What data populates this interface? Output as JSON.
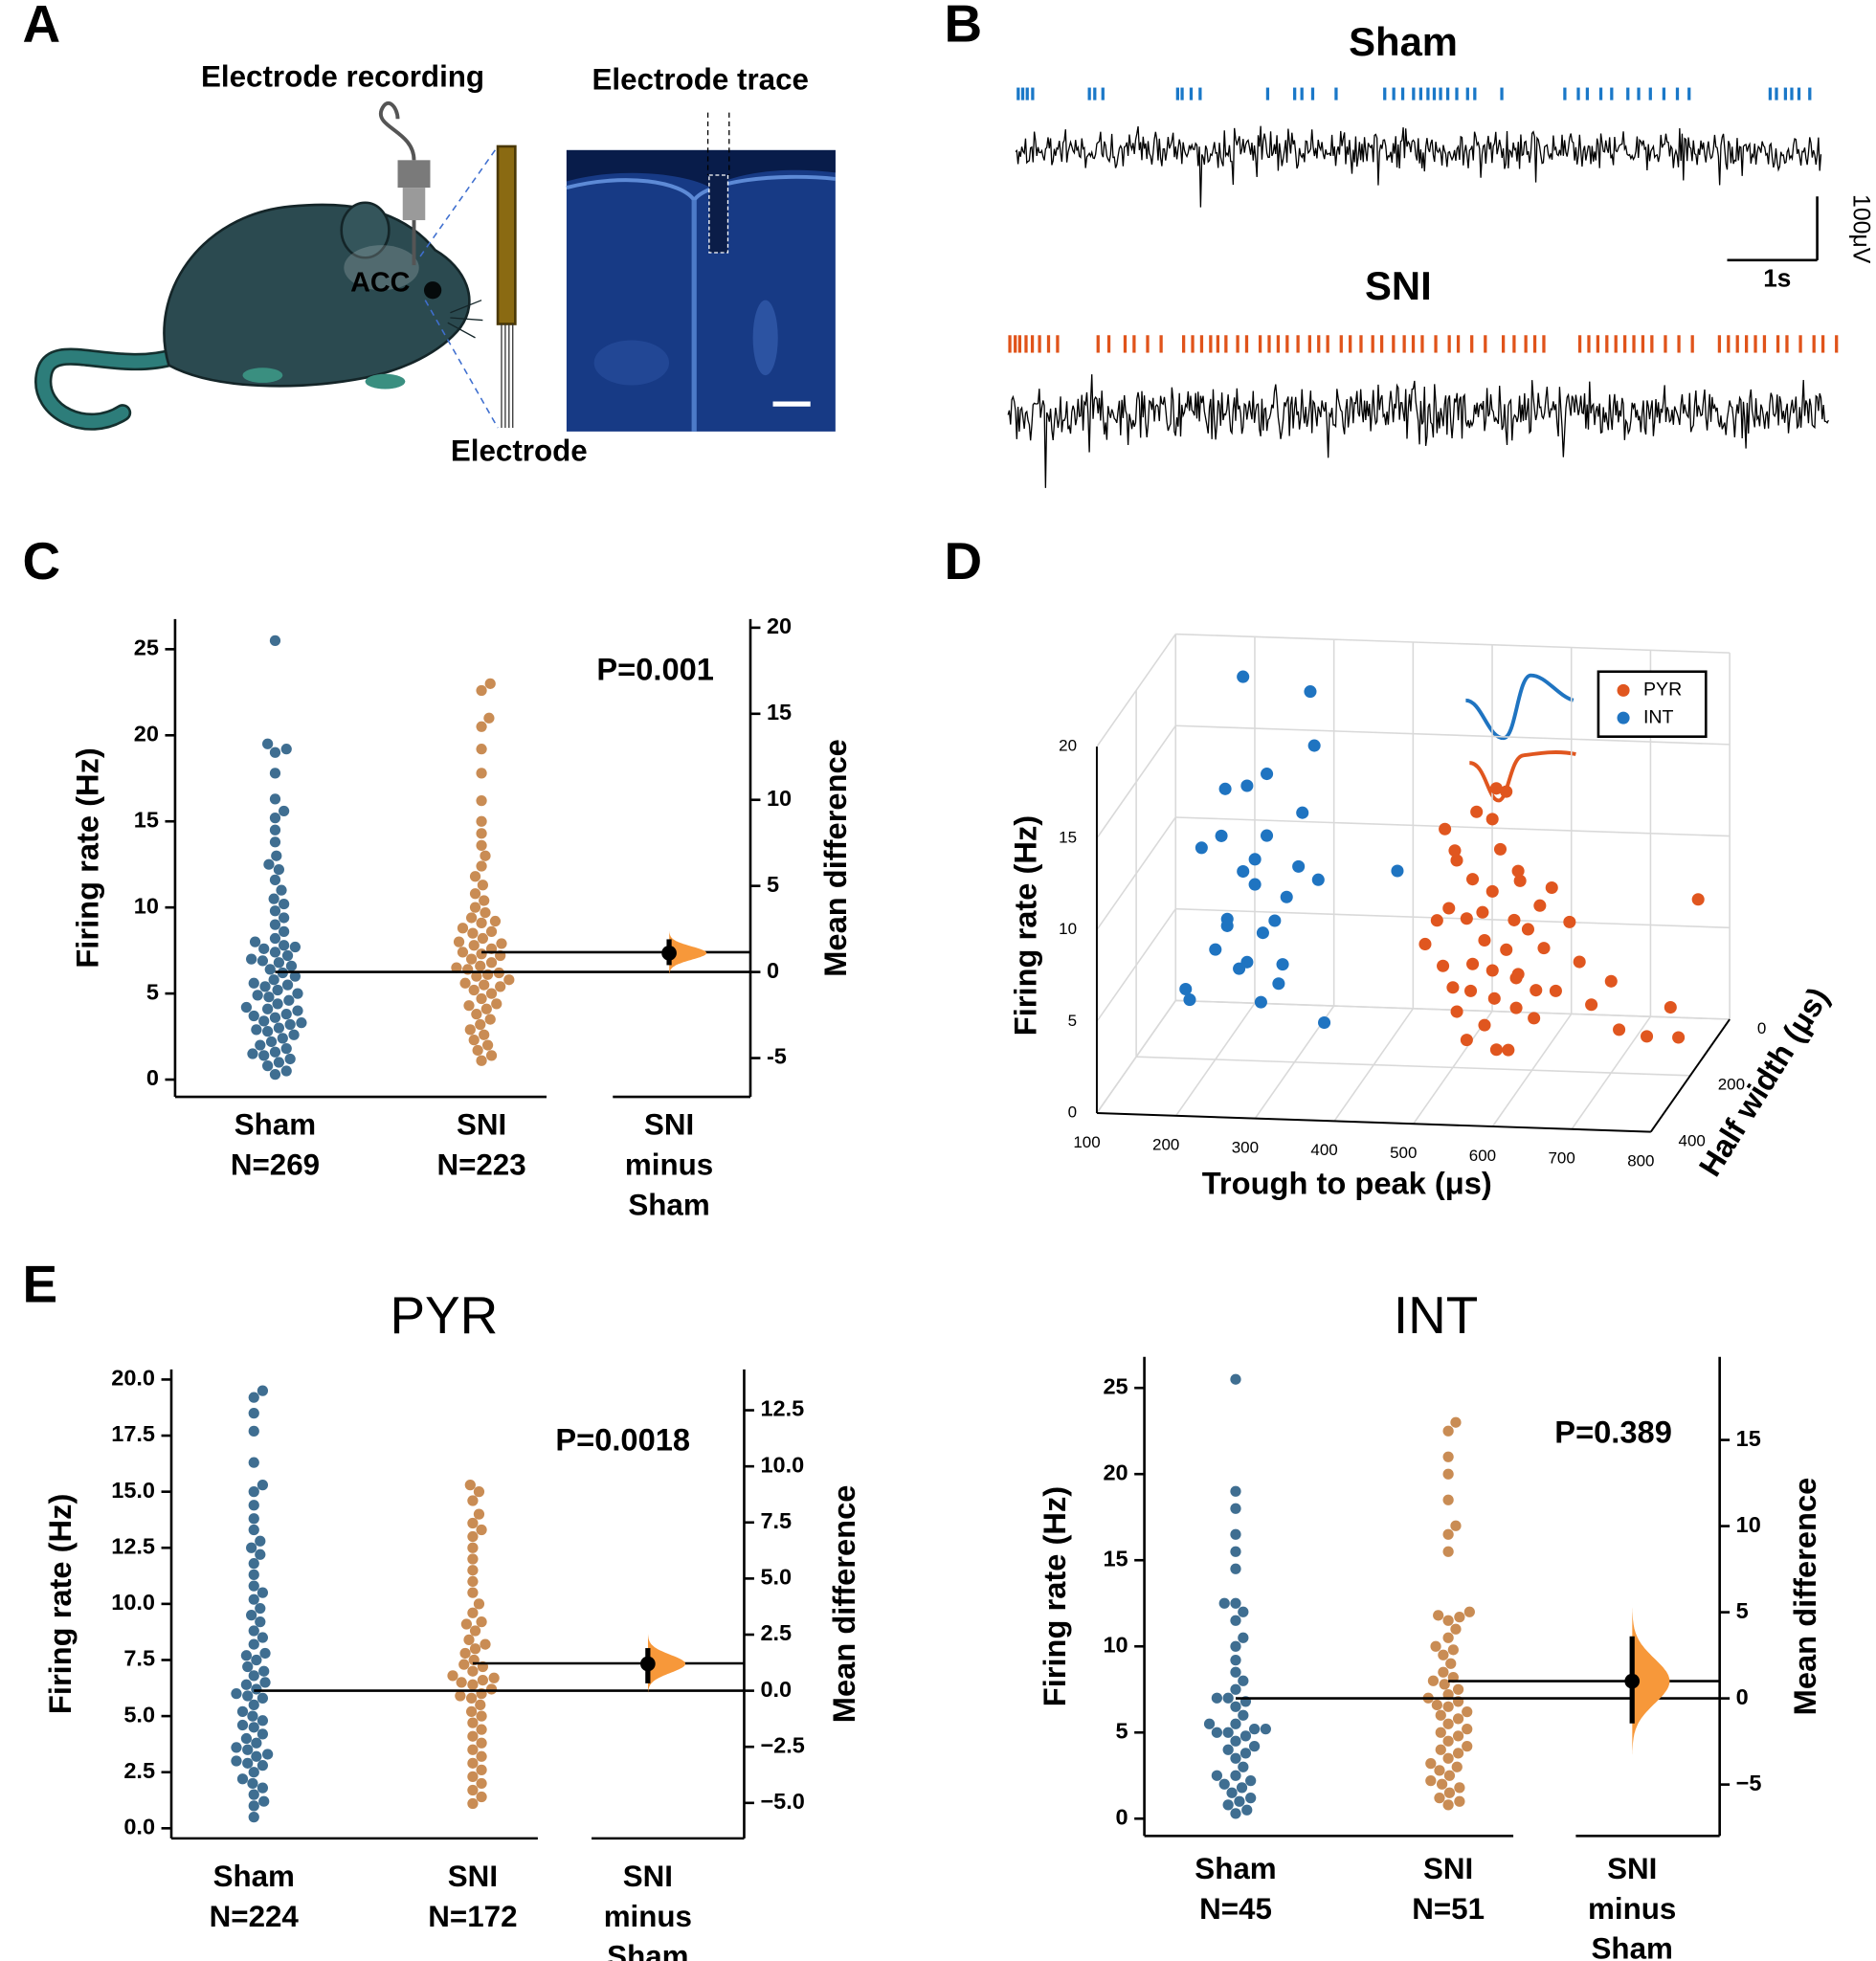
{
  "panel_labels": [
    "A",
    "B",
    "C",
    "D",
    "E"
  ],
  "diagram": {
    "electrode_recording": "Electrode recording",
    "electrode_trace": "Electrode trace",
    "region": "ACC",
    "electrode": "Electrode"
  },
  "chart_data": [
    {
      "type": "raster",
      "series": [
        {
          "name": "Sham",
          "color": "#1a78c8",
          "spike_times": [
            0.03,
            0.08,
            0.13,
            0.19,
            0.82,
            0.88,
            0.97,
            1.8,
            1.85,
            1.95,
            2.05,
            2.8,
            3.1,
            3.18,
            3.3,
            3.56,
            4.1,
            4.2,
            4.3,
            4.42,
            4.5,
            4.58,
            4.65,
            4.72,
            4.8,
            4.9,
            5.02,
            5.1,
            5.4,
            6.1,
            6.25,
            6.35,
            6.5,
            6.62,
            6.8,
            6.92,
            7.05,
            7.2,
            7.35,
            7.48,
            8.38,
            8.45,
            8.55,
            8.62,
            8.7,
            8.82
          ]
        },
        {
          "name": "SNI",
          "color": "#e0531a",
          "spike_times": [
            0.02,
            0.08,
            0.13,
            0.2,
            0.27,
            0.35,
            0.45,
            0.55,
            1.0,
            1.12,
            1.3,
            1.4,
            1.55,
            1.7,
            1.95,
            2.05,
            2.15,
            2.25,
            2.33,
            2.42,
            2.55,
            2.65,
            2.8,
            2.9,
            3.0,
            3.1,
            3.22,
            3.35,
            3.45,
            3.55,
            3.7,
            3.8,
            3.92,
            4.05,
            4.15,
            4.28,
            4.4,
            4.5,
            4.6,
            4.75,
            4.9,
            5.0,
            5.15,
            5.3,
            5.5,
            5.62,
            5.75,
            5.85,
            5.95,
            6.35,
            6.45,
            6.55,
            6.65,
            6.75,
            6.85,
            6.95,
            7.05,
            7.15,
            7.3,
            7.45,
            7.6,
            7.9,
            8.0,
            8.1,
            8.2,
            8.3,
            8.4,
            8.55,
            8.65,
            8.8,
            8.95,
            9.05,
            9.2
          ]
        }
      ],
      "scale_bar": {
        "time": {
          "value": 1,
          "label": "1s"
        },
        "voltage": {
          "value": 100,
          "label": "100μV"
        }
      }
    },
    {
      "type": "estimation",
      "ylabel": "Firing rate (Hz)",
      "y2label": "Mean difference",
      "p_label": "P=0.001",
      "category_labels": [
        [
          "Sham",
          "N=269"
        ],
        [
          "SNI",
          "N=223"
        ],
        [
          "SNI",
          "minus",
          "Sham"
        ]
      ],
      "series": [
        {
          "color": "#3f6e91",
          "mean": 6.25,
          "values": [
            25.5,
            19.5,
            19.2,
            19.0,
            17.8,
            16.3,
            15.6,
            15.2,
            14.5,
            13.8,
            13.0,
            12.5,
            12.2,
            11.6,
            11.0,
            10.5,
            10.2,
            9.8,
            9.4,
            9.0,
            8.6,
            8.2,
            8.0,
            7.8,
            7.6,
            7.4,
            7.2,
            7.0,
            6.8,
            6.6,
            6.4,
            6.2,
            6.0,
            5.8,
            5.6,
            5.4,
            5.2,
            5.0,
            4.8,
            4.6,
            4.4,
            4.2,
            4.0,
            3.8,
            3.6,
            3.4,
            3.2,
            3.0,
            2.8,
            2.6,
            2.4,
            2.2,
            2.0,
            1.8,
            1.6,
            1.4,
            1.2,
            1.0,
            0.8,
            0.5,
            0.3,
            3.3,
            4.1,
            5.5,
            2.9,
            6.9,
            1.5,
            7.7,
            3.7,
            4.9
          ]
        },
        {
          "color": "#c98c54",
          "mean": 7.4,
          "values": [
            23.0,
            22.6,
            21.0,
            20.5,
            19.2,
            17.8,
            16.2,
            15.0,
            14.3,
            13.6,
            13.0,
            12.4,
            11.8,
            11.3,
            10.8,
            10.4,
            10.0,
            9.7,
            9.4,
            9.1,
            8.8,
            8.5,
            8.2,
            8.0,
            7.8,
            7.6,
            7.4,
            7.2,
            7.0,
            6.8,
            6.6,
            6.4,
            6.2,
            6.0,
            5.8,
            5.6,
            5.4,
            5.2,
            5.0,
            4.7,
            4.4,
            4.1,
            3.8,
            3.5,
            3.2,
            2.9,
            2.6,
            2.3,
            2.0,
            1.7,
            1.4,
            1.1,
            6.5,
            7.3,
            6.1,
            8.6,
            5.5,
            9.2,
            4.3,
            7.9
          ]
        }
      ],
      "effect": {
        "value": 1.1,
        "ci": [
          0.4,
          1.9
        ],
        "color": "#f7983a",
        "axis": "y2"
      },
      "ylim": [
        -1,
        26.75
      ],
      "yticks": [
        0,
        5,
        10,
        15,
        20,
        25
      ],
      "y2lim": [
        -7.25,
        20.5
      ],
      "y2ticks": [
        -5,
        0,
        5,
        10,
        15,
        20
      ]
    },
    {
      "type": "scatter3d",
      "xlabel": "Trough to peak (μs)",
      "ylabel": "Half width (μs)",
      "zlabel": "Firing rate (Hz)",
      "xlim": [
        100,
        800
      ],
      "ylim": [
        0,
        400
      ],
      "zlim": [
        0,
        20
      ],
      "xticks": [
        100,
        200,
        300,
        400,
        500,
        600,
        700,
        800
      ],
      "yticks": [
        0,
        200,
        400
      ],
      "zticks": [
        0,
        5,
        10,
        15,
        20
      ],
      "grid": true,
      "legend": "upper right",
      "series": [
        {
          "name": "PYR",
          "color": "#e0561f",
          "x": [
            480,
            500,
            520,
            540,
            560,
            580,
            600,
            520,
            500,
            540,
            560,
            580,
            620,
            640,
            660,
            680,
            700,
            720,
            760,
            780,
            800,
            800,
            510,
            530,
            550,
            570,
            590,
            610,
            490,
            470,
            530,
            550,
            565,
            505,
            545,
            585,
            625,
            645,
            495,
            515,
            535,
            555,
            575,
            595,
            615,
            605,
            585,
            525,
            555,
            575
          ],
          "y": [
            200,
            220,
            180,
            200,
            240,
            200,
            220,
            260,
            180,
            160,
            200,
            180,
            220,
            240,
            200,
            220,
            200,
            240,
            260,
            220,
            160,
            260,
            240,
            220,
            240,
            260,
            240,
            200,
            200,
            220,
            200,
            180,
            190,
            210,
            230,
            210,
            200,
            190,
            230,
            190,
            250,
            220,
            230,
            250,
            240,
            210,
            260,
            230,
            210,
            190
          ],
          "z": [
            8,
            9,
            10,
            7,
            6,
            5,
            8,
            4,
            11,
            13,
            12,
            10,
            7,
            5,
            6,
            4,
            5,
            3,
            3,
            4,
            9,
            3,
            5,
            6,
            3,
            2,
            4,
            9,
            13,
            7,
            14,
            15,
            15,
            12,
            9,
            11,
            10,
            8,
            6,
            8,
            5,
            10,
            7,
            6,
            5,
            3,
            2,
            2,
            4,
            8
          ]
        },
        {
          "name": "INT",
          "color": "#1f74c1",
          "x": [
            150,
            180,
            200,
            210,
            220,
            230,
            240,
            250,
            260,
            220,
            200,
            240,
            270,
            230,
            250,
            260,
            280,
            290,
            300,
            310,
            270,
            220,
            300,
            320,
            190,
            350,
            280,
            330,
            420,
            260
          ],
          "y": [
            150,
            250,
            200,
            180,
            220,
            200,
            160,
            200,
            180,
            250,
            150,
            200,
            220,
            180,
            240,
            200,
            180,
            200,
            160,
            220,
            250,
            140,
            120,
            180,
            230,
            250,
            220,
            200,
            160,
            120
          ],
          "z": [
            3,
            4,
            6,
            7,
            8,
            5,
            9,
            11,
            12,
            13,
            14,
            15,
            16,
            10,
            6,
            7,
            5,
            9,
            13,
            11,
            4,
            20,
            19,
            17,
            12,
            3,
            8,
            10,
            10,
            3
          ]
        }
      ]
    },
    {
      "type": "estimation",
      "title": "PYR",
      "ylabel": "Firing rate (Hz)",
      "y2label": "Mean difference",
      "p_label": "P=0.0018",
      "category_labels": [
        [
          "Sham",
          "N=224"
        ],
        [
          "SNI",
          "N=172"
        ],
        [
          "SNI",
          "minus",
          "Sham"
        ]
      ],
      "series": [
        {
          "color": "#3f6e91",
          "mean": 6.13,
          "values": [
            19.5,
            19.2,
            18.5,
            17.7,
            16.3,
            15.3,
            15.0,
            14.4,
            13.8,
            13.3,
            12.8,
            12.5,
            12.2,
            11.8,
            11.3,
            10.8,
            10.5,
            10.2,
            9.8,
            9.5,
            9.2,
            8.8,
            8.5,
            8.2,
            7.8,
            7.5,
            7.2,
            7.0,
            6.8,
            6.5,
            6.2,
            6.0,
            5.8,
            5.5,
            5.2,
            5.0,
            4.8,
            4.5,
            4.2,
            4.0,
            3.8,
            3.5,
            3.2,
            3.0,
            2.8,
            2.5,
            2.2,
            2.0,
            1.8,
            1.5,
            1.2,
            1.0,
            0.5,
            3.3,
            2.9,
            6.4,
            4.6,
            5.9,
            3.6,
            7.7
          ]
        },
        {
          "color": "#c98c54",
          "mean": 7.35,
          "values": [
            15.3,
            15.0,
            14.6,
            14.0,
            13.6,
            13.3,
            13.0,
            12.5,
            12.0,
            11.5,
            11.0,
            10.5,
            10.0,
            9.6,
            9.2,
            8.8,
            8.4,
            8.0,
            7.8,
            7.5,
            7.2,
            7.0,
            6.8,
            6.6,
            6.4,
            6.2,
            6.0,
            5.8,
            5.5,
            5.2,
            5.0,
            4.7,
            4.4,
            4.1,
            3.8,
            3.5,
            3.2,
            2.9,
            2.6,
            2.3,
            2.0,
            1.7,
            1.4,
            1.1,
            6.7,
            7.3,
            5.9,
            8.2,
            6.5,
            9.1
          ]
        }
      ],
      "effect": {
        "value": 1.2,
        "ci": [
          0.33,
          1.9
        ],
        "color": "#f7983a",
        "axis": "y2"
      },
      "ylim": [
        -0.45,
        20.45
      ],
      "yticks": [
        {
          "value": 0,
          "label": "0.0"
        },
        {
          "value": 2.5,
          "label": "2.5"
        },
        {
          "value": 5,
          "label": "5.0"
        },
        {
          "value": 7.5,
          "label": "7.5"
        },
        {
          "value": 10,
          "label": "10.0"
        },
        {
          "value": 12.5,
          "label": "12.5"
        },
        {
          "value": 15,
          "label": "15.0"
        },
        {
          "value": 17.5,
          "label": "17.5"
        },
        {
          "value": 20,
          "label": "20.0"
        }
      ],
      "y2lim": [
        -6.58,
        14.32
      ],
      "y2ticks": [
        {
          "value": -5,
          "label": "−5.0"
        },
        {
          "value": -2.5,
          "label": "−2.5"
        },
        {
          "value": 0,
          "label": "0.0"
        },
        {
          "value": 2.5,
          "label": "2.5"
        },
        {
          "value": 5,
          "label": "5.0"
        },
        {
          "value": 7.5,
          "label": "7.5"
        },
        {
          "value": 10,
          "label": "10.0"
        },
        {
          "value": 12.5,
          "label": "12.5"
        }
      ]
    },
    {
      "type": "estimation",
      "title": "INT",
      "ylabel": "Firing rate (Hz)",
      "y2label": "Mean difference",
      "p_label": "P=0.389",
      "category_labels": [
        [
          "Sham",
          "N=45"
        ],
        [
          "SNI",
          "N=51"
        ],
        [
          "SNI",
          "minus",
          "Sham"
        ]
      ],
      "series": [
        {
          "color": "#3f6e91",
          "mean": 6.98,
          "values": [
            25.5,
            19.0,
            18.0,
            16.5,
            15.5,
            14.5,
            12.5,
            12.5,
            12.0,
            11.5,
            10.5,
            10.0,
            9.2,
            8.5,
            8.0,
            7.5,
            7.0,
            7.0,
            6.5,
            6.0,
            5.5,
            5.5,
            5.2,
            5.2,
            5.0,
            5.0,
            4.8,
            4.5,
            4.0,
            3.5,
            3.0,
            2.5,
            2.5,
            2.2,
            2.0,
            1.8,
            1.5,
            1.2,
            1.0,
            0.8,
            0.5,
            0.3,
            3.8,
            4.2,
            6.8
          ]
        },
        {
          "color": "#c98c54",
          "mean": 7.98,
          "values": [
            23.0,
            22.5,
            21.0,
            20.0,
            18.5,
            17.0,
            16.5,
            15.5,
            12.0,
            11.8,
            11.5,
            11.0,
            10.5,
            10.0,
            9.5,
            9.0,
            8.5,
            8.2,
            8.0,
            7.5,
            7.2,
            7.0,
            6.8,
            6.5,
            6.2,
            6.0,
            5.8,
            5.5,
            5.2,
            5.0,
            4.8,
            4.5,
            4.2,
            4.0,
            3.8,
            3.5,
            3.2,
            3.0,
            2.8,
            2.5,
            2.2,
            2.0,
            1.8,
            1.5,
            1.2,
            1.0,
            0.8,
            9.8,
            11.7,
            7.8,
            6.6
          ]
        }
      ],
      "effect": {
        "value": 1.0,
        "ci": [
          -1.45,
          3.6
        ],
        "color": "#f7983a",
        "axis": "y2"
      },
      "ylim": [
        -1,
        26.8
      ],
      "yticks": [
        0,
        5,
        10,
        15,
        20,
        25
      ],
      "y2lim": [
        -7.98,
        19.82
      ],
      "y2ticks": [
        {
          "value": -5,
          "label": "−5"
        },
        0,
        5,
        10,
        15
      ]
    }
  ]
}
